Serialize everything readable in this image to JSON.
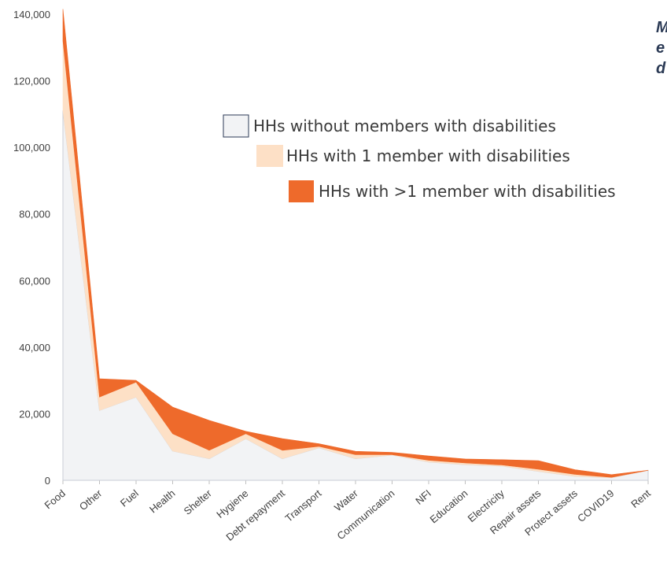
{
  "corner_text": [
    "M",
    "e",
    "d"
  ],
  "chart_data": {
    "type": "area",
    "stacked": true,
    "categories": [
      "Food",
      "Other",
      "Fuel",
      "Health",
      "Shelter",
      "Hygiene",
      "Debt repayment",
      "Transport",
      "Water",
      "Communication",
      "NFI",
      "Education",
      "Electricity",
      "Repair assets",
      "Protect assets",
      "COVID19",
      "Rent"
    ],
    "series": [
      {
        "name": "HHs without members with disabilities",
        "color": "#f2f3f5",
        "stroke": "#c9ced6",
        "values": [
          111000,
          21000,
          25000,
          8800,
          6500,
          12500,
          6500,
          9800,
          6500,
          7600,
          5500,
          4700,
          4300,
          2700,
          1200,
          800,
          3000
        ]
      },
      {
        "name": "HHs with 1 member with disabilities",
        "color": "#fde0c6",
        "stroke": "#fde0c6",
        "values": [
          21000,
          4000,
          4500,
          5200,
          2500,
          1500,
          2500,
          400,
          1200,
          100,
          500,
          500,
          300,
          600,
          600,
          100,
          0
        ]
      },
      {
        "name": "HHs with >1 member with disabilities",
        "color": "#ee6a2b",
        "stroke": "#ee6a2b",
        "values": [
          9500,
          5500,
          500,
          8000,
          9000,
          700,
          3500,
          800,
          1000,
          700,
          1300,
          1200,
          1600,
          2600,
          1400,
          800,
          0
        ]
      }
    ],
    "ylim": [
      0,
      140000
    ],
    "yticks": [
      0,
      20000,
      40000,
      60000,
      80000,
      100000,
      120000,
      140000
    ],
    "ytick_labels": [
      "0",
      "20,000",
      "40,000",
      "60,000",
      "80,000",
      "100,000",
      "120,000",
      "140,000"
    ],
    "legend_position": "top-right",
    "grid": false
  }
}
